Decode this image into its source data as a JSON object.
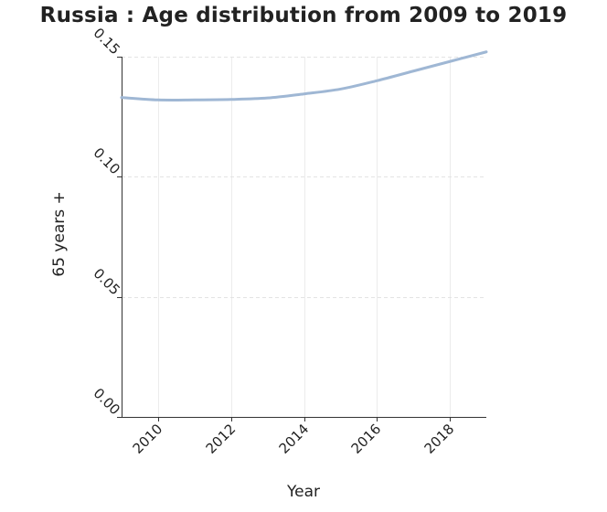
{
  "chart_data": {
    "type": "line",
    "title": "Russia : Age distribution from 2009 to 2019",
    "xlabel": "Year",
    "ylabel": "65 years +",
    "xlim": [
      2009,
      2019
    ],
    "ylim": [
      0.0,
      0.15
    ],
    "x_ticks": [
      2010,
      2012,
      2014,
      2016,
      2018
    ],
    "x_tick_labels": [
      "2010",
      "2012",
      "2014",
      "2016",
      "2018"
    ],
    "y_ticks": [
      0.0,
      0.05,
      0.1,
      0.15
    ],
    "y_tick_labels": [
      "0.00",
      "0.05",
      "0.10",
      "0.15"
    ],
    "grid": true,
    "series": [
      {
        "name": "65 years +",
        "color": "#9fb7d4",
        "x": [
          2009,
          2010,
          2011,
          2012,
          2013,
          2014,
          2015,
          2016,
          2017,
          2018,
          2019
        ],
        "values": [
          0.133,
          0.132,
          0.132,
          0.1322,
          0.1328,
          0.1345,
          0.1365,
          0.14,
          0.144,
          0.148,
          0.152
        ]
      }
    ]
  }
}
